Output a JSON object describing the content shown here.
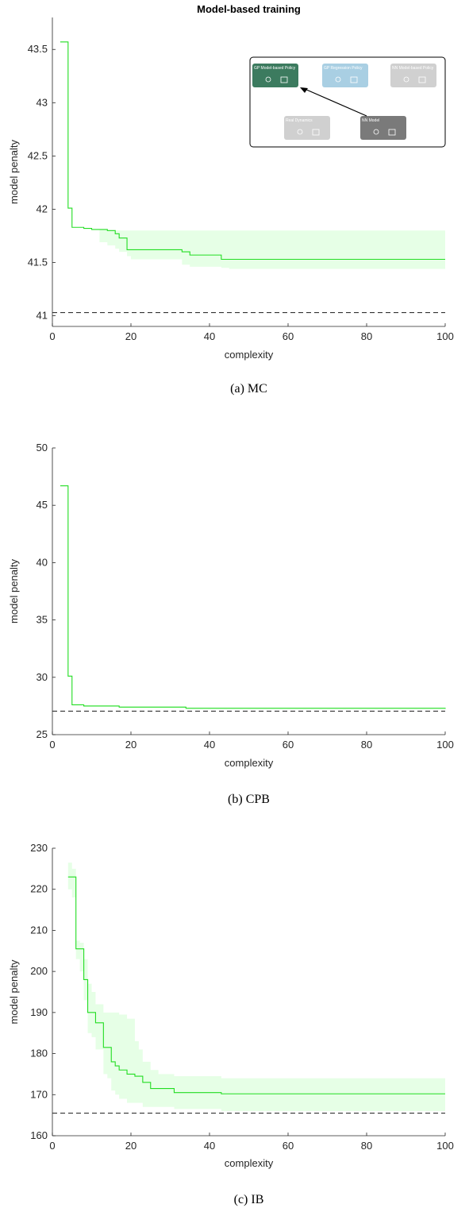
{
  "chart_data": [
    {
      "id": "mc",
      "type": "line",
      "title": "Model-based training",
      "caption": "(a) MC",
      "xlabel": "complexity",
      "ylabel": "model penalty",
      "xlim": [
        0,
        100
      ],
      "ylim": [
        40.9,
        43.8
      ],
      "xticks": [
        0,
        20,
        40,
        60,
        80,
        100
      ],
      "yticks": [
        41,
        41.5,
        42,
        42.5,
        43,
        43.5
      ],
      "ytick_labels": [
        "41",
        "41.5",
        "42",
        "42.5",
        "43",
        "43.5"
      ],
      "series_color": "#22dd22",
      "band_color": "#e6ffe6",
      "baseline_color": "#333333",
      "baseline": 41.03,
      "series": [
        {
          "style": "step",
          "x": [
            2,
            4,
            5,
            8,
            10,
            12,
            14,
            16,
            17,
            19,
            20,
            33,
            35,
            43,
            45,
            100
          ],
          "y": [
            43.57,
            42.01,
            41.83,
            41.82,
            41.81,
            41.81,
            41.8,
            41.77,
            41.73,
            41.62,
            41.62,
            41.6,
            41.57,
            41.53,
            41.53,
            41.53
          ]
        }
      ],
      "band": {
        "x": [
          2,
          4,
          5,
          8,
          10,
          12,
          14,
          16,
          17,
          19,
          20,
          33,
          35,
          43,
          45,
          100
        ],
        "lower": [
          43.57,
          42.01,
          41.83,
          41.82,
          41.81,
          41.69,
          41.66,
          41.63,
          41.6,
          41.56,
          41.53,
          41.48,
          41.46,
          41.45,
          41.44,
          41.42
        ],
        "upper": [
          43.57,
          42.01,
          41.83,
          41.82,
          41.81,
          41.81,
          41.8,
          41.8,
          41.8,
          41.8,
          41.8,
          41.8,
          41.8,
          41.8,
          41.8,
          41.8
        ]
      },
      "inset": {
        "nodes": [
          {
            "label": "GP Model-based Policy",
            "color": "#3c7b5f"
          },
          {
            "label": "GP Regression Policy",
            "color": "#a9cfe3"
          },
          {
            "label": "NN Model-based Policy",
            "color": "#d0d0d0"
          },
          {
            "label": "Real Dynamics",
            "color": "#d0d0d0"
          },
          {
            "label": "NN Model",
            "color": "#7a7a7a"
          }
        ]
      }
    },
    {
      "id": "cpb",
      "type": "line",
      "caption": "(b) CPB",
      "xlabel": "complexity",
      "ylabel": "model penalty",
      "xlim": [
        0,
        100
      ],
      "ylim": [
        25,
        50
      ],
      "xticks": [
        0,
        20,
        40,
        60,
        80,
        100
      ],
      "yticks": [
        25,
        30,
        35,
        40,
        45,
        50
      ],
      "ytick_labels": [
        "25",
        "30",
        "35",
        "40",
        "45",
        "50"
      ],
      "series_color": "#22dd22",
      "band_color": "#e6ffe6",
      "baseline_color": "#333333",
      "baseline": 27.05,
      "series": [
        {
          "style": "step",
          "x": [
            2,
            4,
            5,
            8,
            17,
            34,
            100
          ],
          "y": [
            46.7,
            30.1,
            27.6,
            27.5,
            27.4,
            27.3,
            27.25
          ]
        }
      ],
      "band": {
        "x": [
          2,
          4,
          5,
          8,
          17,
          34,
          100
        ],
        "lower": [
          46.7,
          30.1,
          27.6,
          27.45,
          27.35,
          27.25,
          27.15
        ],
        "upper": [
          46.7,
          30.1,
          27.6,
          27.55,
          27.45,
          27.35,
          27.3
        ]
      }
    },
    {
      "id": "ib",
      "type": "line",
      "caption": "(c) IB",
      "xlabel": "complexity",
      "ylabel": "model penalty",
      "xlim": [
        0,
        100
      ],
      "ylim": [
        160,
        230
      ],
      "xticks": [
        0,
        20,
        40,
        60,
        80,
        100
      ],
      "yticks": [
        160,
        170,
        180,
        190,
        200,
        210,
        220,
        230
      ],
      "ytick_labels": [
        "160",
        "170",
        "180",
        "190",
        "200",
        "210",
        "220",
        "230"
      ],
      "series_color": "#22dd22",
      "band_color": "#e6ffe6",
      "baseline_color": "#333333",
      "baseline": 165.5,
      "series": [
        {
          "style": "step",
          "x": [
            4,
            5,
            6,
            7,
            8,
            9,
            10,
            11,
            13,
            14,
            15,
            16,
            17,
            18,
            19,
            20,
            21,
            22,
            23,
            25,
            27,
            31,
            43,
            100
          ],
          "y": [
            223,
            223,
            205.5,
            205.5,
            198,
            190,
            190,
            187.5,
            181.5,
            181.5,
            178,
            177,
            176,
            176,
            175,
            175,
            174.5,
            174.5,
            173,
            171.5,
            171.5,
            170.5,
            170.2,
            170.2
          ]
        }
      ],
      "band": {
        "x": [
          4,
          5,
          6,
          7,
          8,
          9,
          10,
          11,
          13,
          14,
          15,
          16,
          17,
          18,
          19,
          20,
          21,
          22,
          23,
          25,
          27,
          31,
          43,
          100
        ],
        "lower": [
          220,
          218,
          203,
          200,
          193,
          185,
          184,
          181,
          175,
          174,
          171,
          170,
          169,
          169,
          168,
          168,
          168,
          168,
          167,
          167,
          167,
          166.5,
          166,
          166
        ],
        "upper": [
          226.5,
          225,
          207.5,
          207,
          203,
          197,
          195,
          192,
          190,
          190,
          190,
          190,
          189.5,
          189.5,
          188.5,
          188.5,
          183,
          181,
          178,
          176,
          175,
          174.5,
          174,
          173.5
        ]
      }
    }
  ]
}
